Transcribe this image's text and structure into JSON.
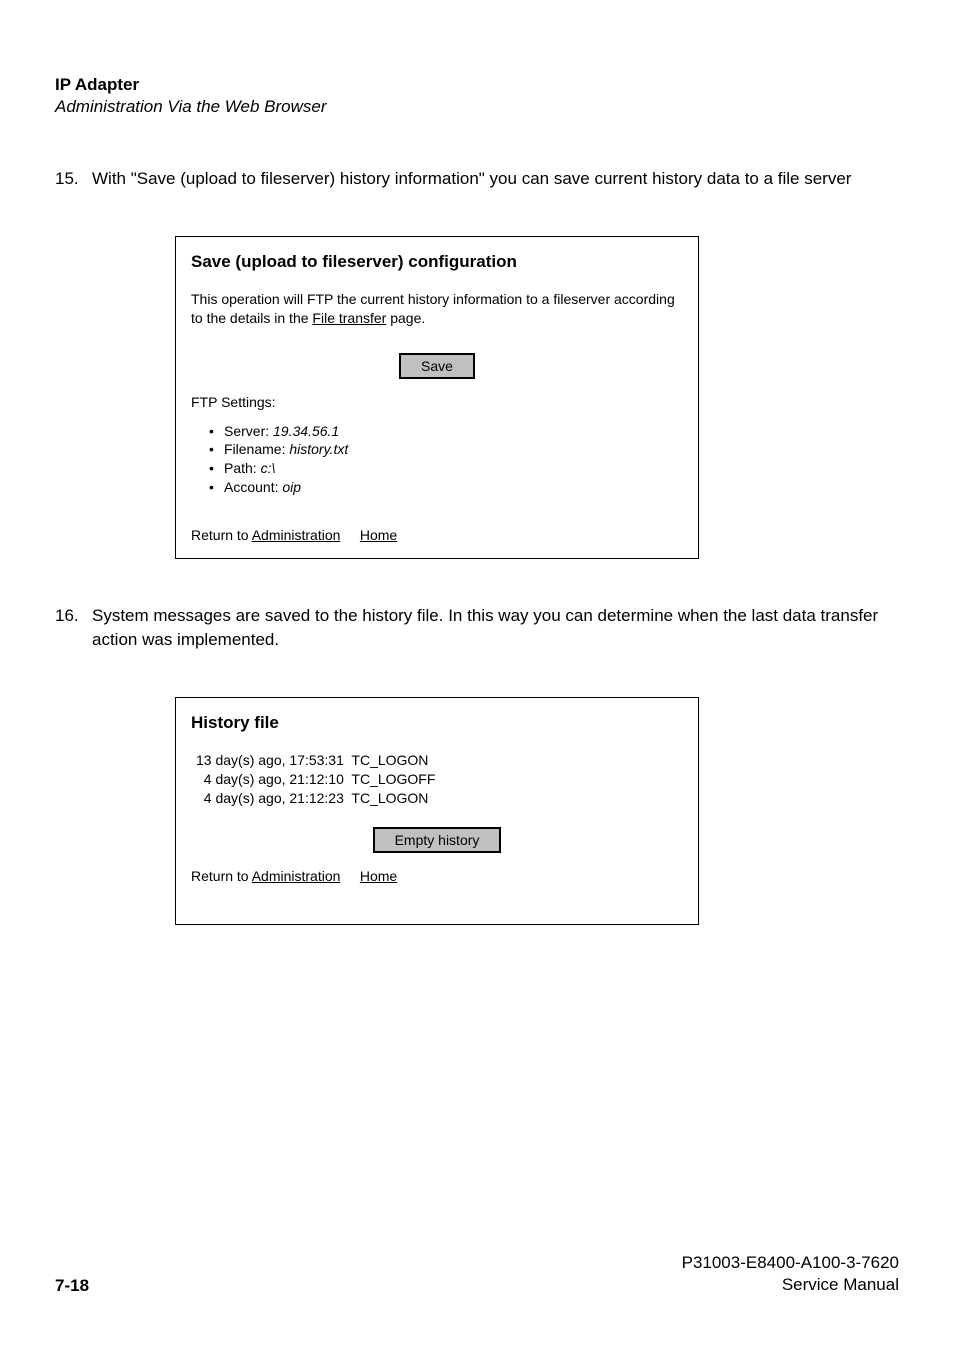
{
  "header": {
    "title": "IP Adapter",
    "subtitle": "Administration Via the Web Browser"
  },
  "item15": {
    "number": "15.",
    "text": "With \"Save (upload to fileserver) history information\" you can save current history data to a file server"
  },
  "box1": {
    "title": "Save (upload to fileserver) configuration",
    "description_pre": "This operation will FTP the current history information to a fileserver according to the details in the ",
    "description_link": "File transfer",
    "description_post": " page.",
    "save_button": "Save",
    "ftp_label": "FTP Settings:",
    "ftp": {
      "server_label": "Server: ",
      "server_value": "19.34.56.1",
      "filename_label": "Filename: ",
      "filename_value": "history.txt",
      "path_label": "Path: ",
      "path_value": "c:\\",
      "account_label": "Account: ",
      "account_value": "oip"
    },
    "return_pre": "Return to ",
    "return_admin": "Administration",
    "return_home": "Home"
  },
  "item16": {
    "number": "16.",
    "text": "System messages are saved to the history file. In this way you can determine when the last data transfer action was implemented."
  },
  "box2": {
    "title": "History file",
    "entries": [
      "13 day(s) ago, 17:53:31  TC_LOGON",
      "  4 day(s) ago, 21:12:10  TC_LOGOFF",
      "  4 day(s) ago, 21:12:23  TC_LOGON"
    ],
    "empty_button": "Empty history",
    "return_pre": "Return to ",
    "return_admin": "Administration",
    "return_home": "Home"
  },
  "footer": {
    "page": "7-18",
    "doc_id": "P31003-E8400-A100-3-7620",
    "doc_type": "Service Manual"
  }
}
